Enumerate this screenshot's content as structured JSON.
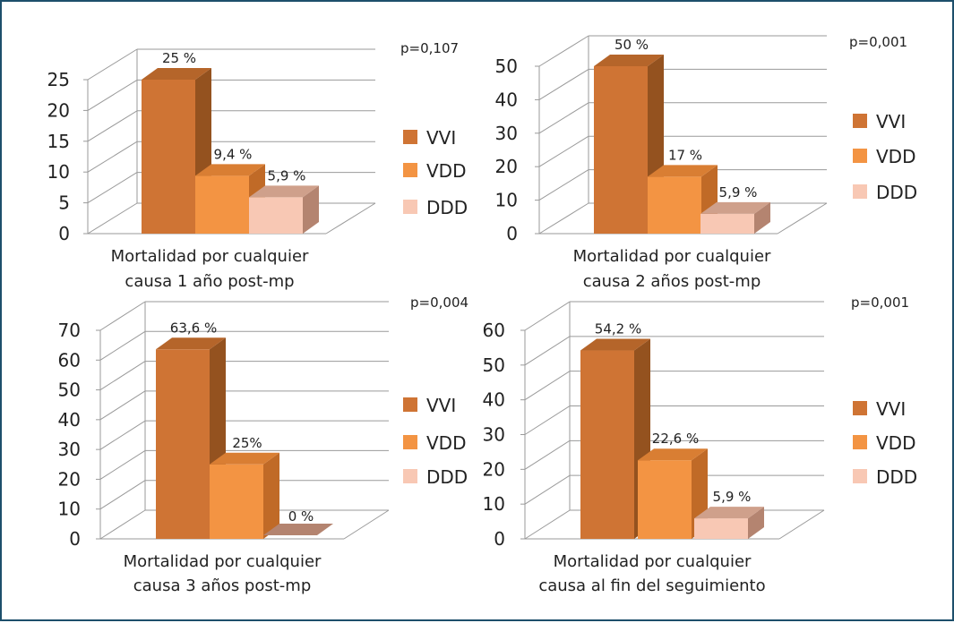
{
  "colors": {
    "VVI": {
      "front": "#cf7434",
      "side": "#94521f",
      "top": "#b5652a"
    },
    "VDD": {
      "front": "#f39443",
      "side": "#c06a27",
      "top": "#d97e33"
    },
    "DDD": {
      "front": "#f8c8b4",
      "side": "#b48470",
      "top": "#cfa08b"
    },
    "grid": "#9a9a9a",
    "text": "#222222",
    "frame": "#1d4f6b"
  },
  "chart_data": [
    {
      "type": "bar",
      "title": "",
      "categories": [
        "VVI",
        "VDD",
        "DDD"
      ],
      "values": [
        25,
        9.4,
        5.9
      ],
      "value_labels": [
        "25 %",
        "9,4 %",
        "5,9 %"
      ],
      "yticks": [
        "0",
        "5",
        "10",
        "15",
        "20",
        "25"
      ],
      "ylim": [
        0,
        25
      ],
      "xlabel": [
        "Mortalidad por cualquier",
        "causa 1 año post-mp"
      ],
      "pvalue": "p=0,107",
      "legend": [
        "VVI",
        "VDD",
        "DDD"
      ]
    },
    {
      "type": "bar",
      "title": "",
      "categories": [
        "VVI",
        "VDD",
        "DDD"
      ],
      "values": [
        50,
        17,
        5.9
      ],
      "value_labels": [
        "50 %",
        "17 %",
        "5,9 %"
      ],
      "yticks": [
        "0",
        "10",
        "20",
        "30",
        "40",
        "50"
      ],
      "ylim": [
        0,
        50
      ],
      "xlabel": [
        "Mortalidad por cualquier",
        "causa 2 años post-mp"
      ],
      "pvalue": "p=0,001",
      "legend": [
        "VVI",
        "VDD",
        "DDD"
      ]
    },
    {
      "type": "bar",
      "title": "",
      "categories": [
        "VVI",
        "VDD",
        "DDD"
      ],
      "values": [
        63.6,
        25,
        0
      ],
      "value_labels": [
        "63,6 %",
        "25%",
        "0 %"
      ],
      "yticks": [
        "0",
        "10",
        "20",
        "30",
        "40",
        "50",
        "60",
        "70"
      ],
      "ylim": [
        0,
        70
      ],
      "xlabel": [
        "Mortalidad por cualquier",
        "causa 3 años post-mp"
      ],
      "pvalue": "p=0,004",
      "legend": [
        "VVI",
        "VDD",
        "DDD"
      ]
    },
    {
      "type": "bar",
      "title": "",
      "categories": [
        "VVI",
        "VDD",
        "DDD"
      ],
      "values": [
        54.2,
        22.6,
        5.9
      ],
      "value_labels": [
        "54,2 %",
        "22,6 %",
        "5,9 %"
      ],
      "yticks": [
        "0",
        "10",
        "20",
        "30",
        "40",
        "50",
        "60"
      ],
      "ylim": [
        0,
        60
      ],
      "xlabel": [
        "Mortalidad por cualquier",
        "causa al fin del seguimiento"
      ],
      "pvalue": "p=0,001",
      "legend": [
        "VVI",
        "VDD",
        "DDD"
      ]
    }
  ]
}
